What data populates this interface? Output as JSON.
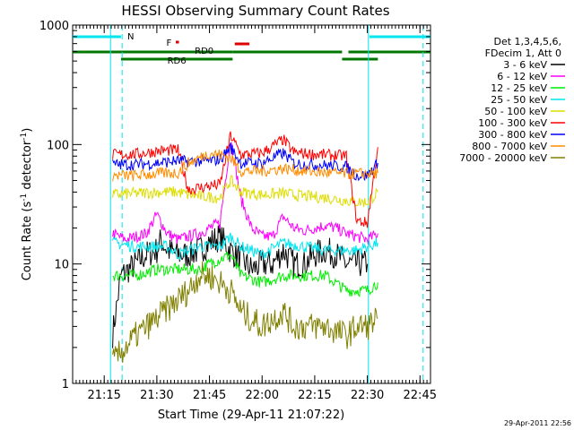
{
  "chart_data": {
    "type": "line",
    "title": "HESSI Observing Summary Count Rates",
    "xlabel": "Start Time (29-Apr-11 21:07:22)",
    "ylabel_main": "Count Rate (s",
    "ylabel_sup1": "-1",
    "ylabel_mid": " detector",
    "ylabel_sup2": "-1",
    "ylabel_end": ")",
    "timestamp": "29-Apr-2011 22:56",
    "x_range_min": [
      21.1,
      22.8
    ],
    "y_scale": "log",
    "ylim": [
      1,
      1000
    ],
    "x_ticks": [
      {
        "t": 21.25,
        "label": "21:15"
      },
      {
        "t": 21.5,
        "label": "21:30"
      },
      {
        "t": 21.75,
        "label": "21:45"
      },
      {
        "t": 22.0,
        "label": "22:00"
      },
      {
        "t": 22.25,
        "label": "22:15"
      },
      {
        "t": 22.5,
        "label": "22:30"
      },
      {
        "t": 22.75,
        "label": "22:45"
      }
    ],
    "y_ticks": [
      {
        "v": 1,
        "label": "1"
      },
      {
        "v": 10,
        "label": "10"
      },
      {
        "v": 100,
        "label": "100"
      },
      {
        "v": 1000,
        "label": "1000"
      }
    ],
    "legend_header": [
      "Det 1,3,4,5,6,",
      "FDecim 1, Att 0"
    ],
    "legend_placement": "right",
    "flags": [
      {
        "label": "N",
        "color": "#00e5ee"
      },
      {
        "label": "F",
        "color": "#dd0000"
      },
      {
        "label": "RD0",
        "color": "#007700"
      },
      {
        "label": "RD6",
        "color": "#007700"
      }
    ],
    "series": [
      {
        "name": "3 - 6 keV",
        "color": "#000000",
        "points": [
          [
            21.29,
            2.6
          ],
          [
            21.33,
            8
          ],
          [
            21.4,
            10
          ],
          [
            21.45,
            12
          ],
          [
            21.5,
            13
          ],
          [
            21.52,
            16
          ],
          [
            21.55,
            13
          ],
          [
            21.6,
            12
          ],
          [
            21.65,
            12
          ],
          [
            21.7,
            13
          ],
          [
            21.75,
            15
          ],
          [
            21.8,
            17
          ],
          [
            21.85,
            13
          ],
          [
            21.9,
            11
          ],
          [
            21.95,
            9
          ],
          [
            22.0,
            10
          ],
          [
            22.05,
            10
          ],
          [
            22.1,
            13
          ],
          [
            22.15,
            10
          ],
          [
            22.2,
            10
          ],
          [
            22.25,
            12
          ],
          [
            22.3,
            13
          ],
          [
            22.35,
            12
          ],
          [
            22.4,
            10
          ],
          [
            22.45,
            10
          ],
          [
            22.5,
            10
          ]
        ]
      },
      {
        "name": "6 - 12 keV",
        "color": "#ff00ff",
        "points": [
          [
            21.29,
            18
          ],
          [
            21.35,
            16
          ],
          [
            21.45,
            18
          ],
          [
            21.5,
            26
          ],
          [
            21.55,
            18
          ],
          [
            21.6,
            16
          ],
          [
            21.65,
            17
          ],
          [
            21.7,
            18
          ],
          [
            21.75,
            20
          ],
          [
            21.8,
            22
          ],
          [
            21.85,
            110
          ],
          [
            21.9,
            35
          ],
          [
            21.95,
            20
          ],
          [
            22.0,
            17
          ],
          [
            22.05,
            17
          ],
          [
            22.1,
            25
          ],
          [
            22.15,
            20
          ],
          [
            22.2,
            19
          ],
          [
            22.25,
            20
          ],
          [
            22.3,
            21
          ],
          [
            22.35,
            20
          ],
          [
            22.4,
            18
          ],
          [
            22.45,
            17
          ],
          [
            22.5,
            16
          ],
          [
            22.55,
            18
          ]
        ]
      },
      {
        "name": "12 - 25 keV",
        "color": "#00ee00",
        "points": [
          [
            21.29,
            8
          ],
          [
            21.4,
            8
          ],
          [
            21.5,
            9
          ],
          [
            21.6,
            9
          ],
          [
            21.7,
            9
          ],
          [
            21.75,
            10
          ],
          [
            21.8,
            11
          ],
          [
            21.85,
            12
          ],
          [
            21.9,
            8
          ],
          [
            22.0,
            7
          ],
          [
            22.1,
            8
          ],
          [
            22.2,
            8
          ],
          [
            22.3,
            8
          ],
          [
            22.4,
            6
          ],
          [
            22.45,
            6
          ],
          [
            22.5,
            6
          ],
          [
            22.55,
            7
          ]
        ]
      },
      {
        "name": "25 - 50 keV",
        "color": "#00e5ee",
        "points": [
          [
            21.29,
            15
          ],
          [
            21.4,
            14
          ],
          [
            21.5,
            14
          ],
          [
            21.55,
            14
          ],
          [
            21.6,
            12
          ],
          [
            21.7,
            14
          ],
          [
            21.8,
            14
          ],
          [
            21.85,
            17
          ],
          [
            21.9,
            14
          ],
          [
            22.0,
            12
          ],
          [
            22.1,
            15
          ],
          [
            22.2,
            14
          ],
          [
            22.3,
            13
          ],
          [
            22.4,
            13
          ],
          [
            22.45,
            13
          ],
          [
            22.5,
            14
          ],
          [
            22.55,
            15
          ]
        ]
      },
      {
        "name": "50 - 100 keV",
        "color": "#dddd00",
        "points": [
          [
            21.29,
            38
          ],
          [
            21.4,
            39
          ],
          [
            21.5,
            40
          ],
          [
            21.6,
            40
          ],
          [
            21.65,
            38
          ],
          [
            21.7,
            37
          ],
          [
            21.8,
            36
          ],
          [
            21.85,
            50
          ],
          [
            21.9,
            40
          ],
          [
            22.0,
            38
          ],
          [
            22.1,
            39
          ],
          [
            22.2,
            37
          ],
          [
            22.3,
            36
          ],
          [
            22.4,
            34
          ],
          [
            22.45,
            33
          ],
          [
            22.5,
            33
          ],
          [
            22.55,
            40
          ]
        ]
      },
      {
        "name": "100 - 300 keV",
        "color": "#ff0000",
        "points": [
          [
            21.29,
            82
          ],
          [
            21.4,
            83
          ],
          [
            21.5,
            88
          ],
          [
            21.6,
            90
          ],
          [
            21.65,
            42
          ],
          [
            21.75,
            45
          ],
          [
            21.8,
            46
          ],
          [
            21.85,
            120
          ],
          [
            21.9,
            82
          ],
          [
            22.0,
            85
          ],
          [
            22.1,
            110
          ],
          [
            22.15,
            86
          ],
          [
            22.2,
            84
          ],
          [
            22.3,
            82
          ],
          [
            22.4,
            80
          ],
          [
            22.45,
            23
          ],
          [
            22.5,
            22
          ],
          [
            22.55,
            95
          ]
        ]
      },
      {
        "name": "300 - 800 keV",
        "color": "#0000ff",
        "points": [
          [
            21.29,
            68
          ],
          [
            21.4,
            68
          ],
          [
            21.5,
            70
          ],
          [
            21.6,
            73
          ],
          [
            21.65,
            72
          ],
          [
            21.75,
            73
          ],
          [
            21.8,
            75
          ],
          [
            21.85,
            95
          ],
          [
            21.9,
            70
          ],
          [
            22.0,
            70
          ],
          [
            22.1,
            85
          ],
          [
            22.15,
            70
          ],
          [
            22.2,
            68
          ],
          [
            22.3,
            67
          ],
          [
            22.4,
            65
          ],
          [
            22.45,
            55
          ],
          [
            22.5,
            55
          ],
          [
            22.55,
            70
          ]
        ]
      },
      {
        "name": "800 - 7000 keV",
        "color": "#ff8c00",
        "points": [
          [
            21.29,
            55
          ],
          [
            21.4,
            55
          ],
          [
            21.5,
            57
          ],
          [
            21.6,
            58
          ],
          [
            21.65,
            70
          ],
          [
            21.75,
            85
          ],
          [
            21.8,
            82
          ],
          [
            21.85,
            78
          ],
          [
            21.9,
            60
          ],
          [
            22.0,
            60
          ],
          [
            22.1,
            63
          ],
          [
            22.2,
            60
          ],
          [
            22.3,
            58
          ],
          [
            22.4,
            57
          ],
          [
            22.45,
            57
          ],
          [
            22.5,
            57
          ],
          [
            22.55,
            58
          ]
        ]
      },
      {
        "name": "7000 - 20000 keV",
        "color": "#808000",
        "points": [
          [
            21.29,
            1.5
          ],
          [
            21.35,
            2
          ],
          [
            21.4,
            2.5
          ],
          [
            21.5,
            3.5
          ],
          [
            21.6,
            5
          ],
          [
            21.65,
            6
          ],
          [
            21.7,
            8
          ],
          [
            21.75,
            8
          ],
          [
            21.8,
            7
          ],
          [
            21.85,
            6
          ],
          [
            21.9,
            4
          ],
          [
            22.0,
            3
          ],
          [
            22.1,
            4
          ],
          [
            22.15,
            3
          ],
          [
            22.2,
            3
          ],
          [
            22.3,
            3
          ],
          [
            22.4,
            2.5
          ],
          [
            22.45,
            3
          ],
          [
            22.5,
            3
          ],
          [
            22.55,
            3.5
          ]
        ]
      }
    ]
  }
}
